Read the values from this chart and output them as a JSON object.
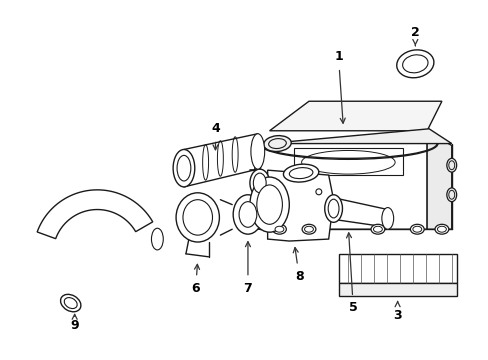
{
  "background_color": "#ffffff",
  "line_color": "#1a1a1a",
  "label_color": "#000000",
  "arrow_color": "#333333",
  "figsize": [
    4.89,
    3.6
  ],
  "dpi": 100
}
